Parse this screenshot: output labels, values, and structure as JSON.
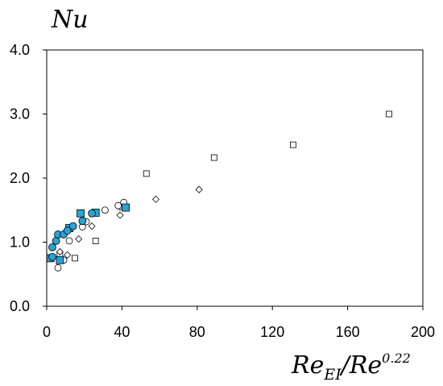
{
  "chart_data": {
    "type": "scatter",
    "ylabel": "Nu",
    "xlabel": {
      "base": "Re",
      "base_sub": "EI",
      "sep": "/",
      "base2": "Re",
      "sup": "0.22"
    },
    "xlim": [
      0,
      200
    ],
    "ylim": [
      0,
      4
    ],
    "x_ticks": [
      "0",
      "40",
      "80",
      "120",
      "160",
      "200"
    ],
    "y_ticks": [
      "0.0",
      "1.0",
      "2.0",
      "3.0",
      "4.0"
    ],
    "grid": false,
    "legend": "none",
    "series": [
      {
        "marker": "square",
        "fill": "#ffffff",
        "stroke": "#000000",
        "points": [
          [
            7,
            0.8
          ],
          [
            15,
            0.75
          ],
          [
            26,
            1.02
          ],
          [
            53,
            2.07
          ],
          [
            89,
            2.32
          ],
          [
            131,
            2.52
          ],
          [
            182,
            3.0
          ]
        ]
      },
      {
        "marker": "diamond",
        "fill": "#ffffff",
        "stroke": "#000000",
        "points": [
          [
            7,
            0.85
          ],
          [
            11,
            0.8
          ],
          [
            17,
            1.05
          ],
          [
            24,
            1.25
          ],
          [
            39,
            1.42
          ],
          [
            39,
            1.55
          ],
          [
            58,
            1.67
          ],
          [
            81,
            1.82
          ]
        ]
      },
      {
        "marker": "circle",
        "fill": "#ffffff",
        "stroke": "#000000",
        "points": [
          [
            6,
            0.6
          ],
          [
            9,
            0.72
          ],
          [
            12,
            1.02
          ],
          [
            19,
            1.24
          ],
          [
            21,
            1.32
          ],
          [
            31,
            1.5
          ],
          [
            38,
            1.57
          ],
          [
            41,
            1.62
          ]
        ]
      },
      {
        "marker": "square",
        "fill": "#29a3d6",
        "stroke": "#000000",
        "points": [
          [
            2,
            0.75
          ],
          [
            7,
            0.72
          ],
          [
            12,
            1.22
          ],
          [
            18,
            1.45
          ],
          [
            26,
            1.46
          ],
          [
            42,
            1.54
          ]
        ]
      },
      {
        "marker": "circle",
        "fill": "#29a3d6",
        "stroke": "#000000",
        "points": [
          [
            3,
            0.77
          ],
          [
            3,
            0.92
          ],
          [
            5,
            1.02
          ],
          [
            6,
            1.12
          ],
          [
            9,
            1.12
          ],
          [
            11,
            1.18
          ],
          [
            14,
            1.25
          ],
          [
            19,
            1.33
          ],
          [
            24,
            1.45
          ]
        ]
      }
    ]
  }
}
